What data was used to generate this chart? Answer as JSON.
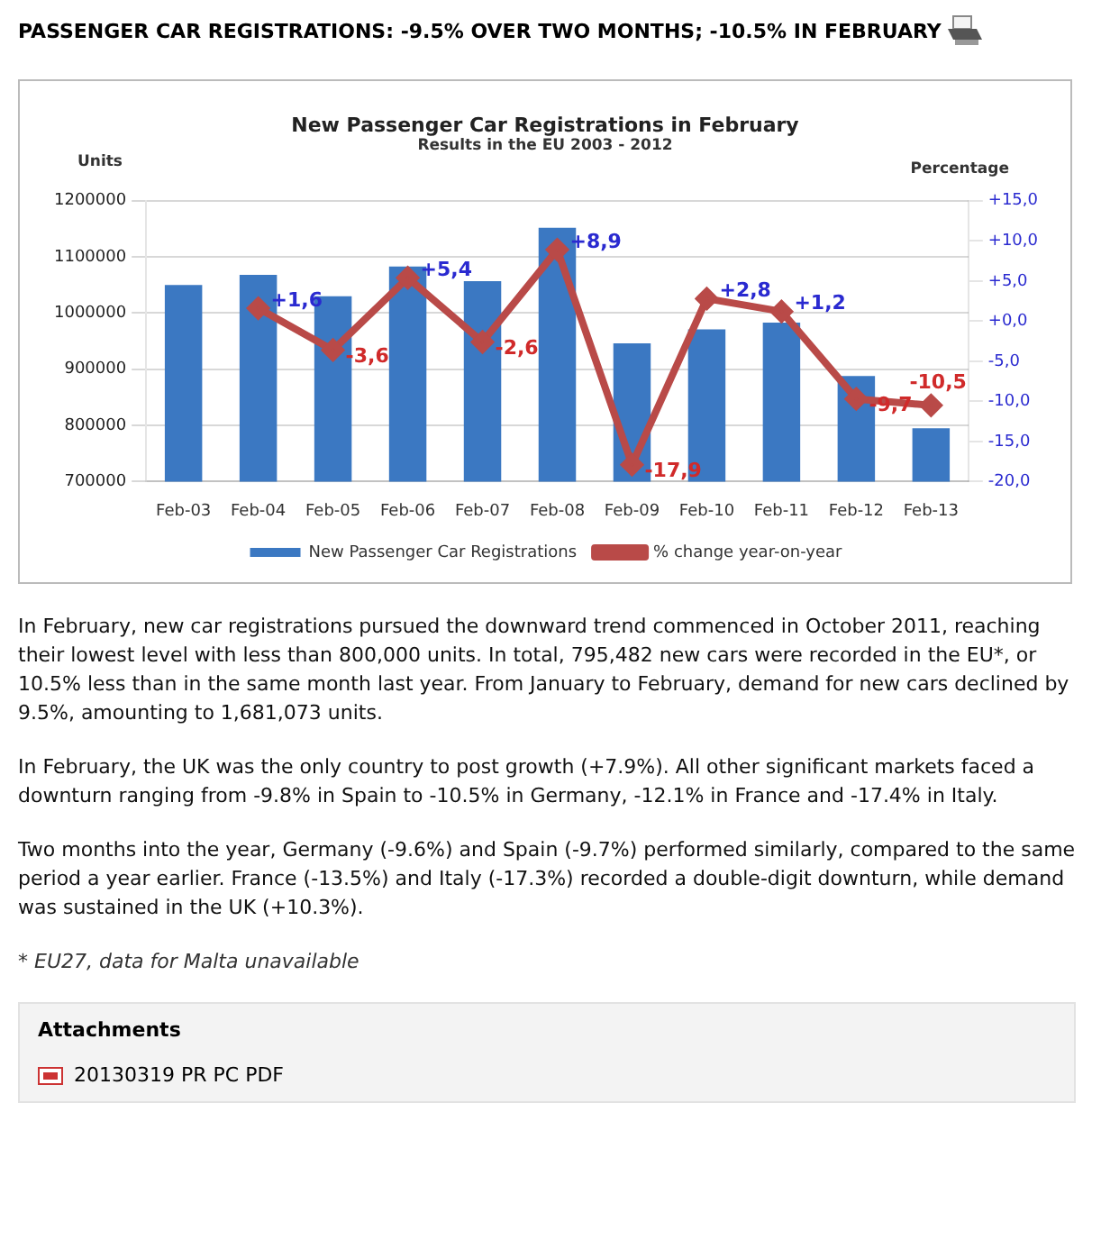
{
  "chart_data": {
    "type": "bar",
    "title": "New Passenger Car Registrations in February",
    "subtitle": "Results in the EU 2003 - 2012",
    "ylabel": "Units",
    "y2label": "Percentage",
    "categories": [
      "Feb-03",
      "Feb-04",
      "Feb-05",
      "Feb-06",
      "Feb-07",
      "Feb-08",
      "Feb-09",
      "Feb-10",
      "Feb-11",
      "Feb-12",
      "Feb-13"
    ],
    "series": [
      {
        "name": "New Passenger Car Registrations",
        "color": "#3b78c2",
        "values": [
          1050000,
          1068000,
          1030000,
          1083000,
          1057000,
          1152000,
          946000,
          971000,
          983000,
          888000,
          795000
        ]
      },
      {
        "name": "% change year-on-year",
        "type": "line",
        "axis": "y2",
        "color": "#b94a48",
        "marker": "diamond",
        "values": [
          null,
          1.6,
          -3.6,
          5.4,
          -2.6,
          8.9,
          -17.9,
          2.8,
          1.2,
          -9.7,
          -10.5
        ],
        "value_labels": [
          null,
          "+1,6",
          "-3,6",
          "+5,4",
          "-2,6",
          "+8,9",
          "-17,9",
          "+2,8",
          "+1,2",
          "-9,7",
          "-10,5"
        ]
      }
    ],
    "ylim": [
      700000,
      1200000
    ],
    "yticks": [
      700000,
      800000,
      900000,
      1000000,
      1100000,
      1200000
    ],
    "y2lim": [
      -20,
      15
    ],
    "y2ticks": [
      {
        "value": -20,
        "label": "-20,0"
      },
      {
        "value": -15,
        "label": "-15,0"
      },
      {
        "value": -10,
        "label": "-10,0"
      },
      {
        "value": -5,
        "label": "-5,0"
      },
      {
        "value": 0,
        "label": "+0,0"
      },
      {
        "value": 5,
        "label": "+5,0"
      },
      {
        "value": 10,
        "label": "+10,0"
      },
      {
        "value": 15,
        "label": "+15,0"
      }
    ],
    "grid": "y",
    "legend": "bottom",
    "annotations": [
      "PASSENGER CAR REGISTRATIONS: -9.5% OVER TWO MONTHS; -10.5% IN FEBRUARY",
      "In February, new car registrations pursued the downward trend commenced in October 2011, reaching their lowest level with less than 800,000 units. In total, 795,482 new cars were recorded in the EU*, or 10.5% less than in the same month last year. From January to February, demand for new cars declined by 9.5%, amounting to 1,681,073 units.",
      "In February, the UK was the only country to post growth (+7.9%). All other significant markets faced a downturn ranging from -9.8% in Spain to -10.5% in Germany, -12.1% in France and -17.4% in Italy.",
      "Two months into the year, Germany (-9.6%) and Spain (-9.7%) performed similarly, compared to the same period a year earlier. France (-13.5%) and Italy (-17.3%) recorded a double-digit downturn, while demand was sustained in the UK (+10.3%).",
      "* EU27, data for Malta unavailable",
      "Attachments",
      "20130319 PR PC PDF"
    ]
  }
}
